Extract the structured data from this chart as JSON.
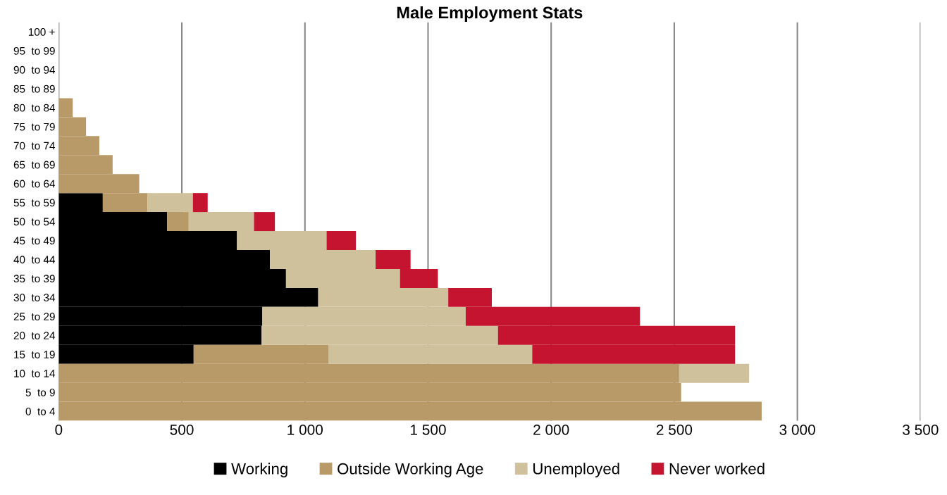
{
  "chart_data": {
    "type": "bar",
    "orientation": "horizontal",
    "stacked": true,
    "title": "Male Employment Stats",
    "categories": [
      "100 +",
      "95  to 99",
      "90  to 94",
      "85  to 89",
      "80  to 84",
      "75  to 79",
      "70  to 74",
      "65  to 69",
      "60  to 64",
      "55  to 59",
      "50  to 54",
      "45  to 49",
      "40  to 44",
      "35  to 39",
      "30  to 34",
      "25  to 29",
      "20  to 24",
      "15  to 19",
      "10  to 14",
      "5  to 9",
      "0  to 4"
    ],
    "series": [
      {
        "name": "Working",
        "color": "#000000",
        "values": [
          0,
          0,
          0,
          0,
          0,
          0,
          0,
          0,
          0,
          179,
          440,
          724,
          858,
          923,
          1054,
          827,
          824,
          548,
          0,
          0,
          0
        ]
      },
      {
        "name": "Outside Working Age",
        "color": "#b89968",
        "values": [
          0,
          0,
          0,
          0,
          57,
          111,
          165,
          219,
          327,
          182,
          88,
          0,
          0,
          0,
          0,
          0,
          0,
          549,
          2520,
          2528,
          2855
        ]
      },
      {
        "name": "Unemployed",
        "color": "#cfc19b",
        "values": [
          0,
          0,
          0,
          0,
          0,
          0,
          0,
          0,
          0,
          184,
          265,
          364,
          429,
          463,
          528,
          826,
          960,
          826,
          284,
          0,
          0
        ]
      },
      {
        "name": "Never worked",
        "color": "#c41430",
        "values": [
          0,
          0,
          0,
          0,
          0,
          0,
          0,
          0,
          0,
          60,
          85,
          119,
          142,
          154,
          177,
          708,
          963,
          824,
          0,
          0,
          0
        ]
      }
    ],
    "xlim": [
      0,
      3500
    ],
    "xticks": [
      0,
      500,
      {
        "value": 1000,
        "label": "1 000"
      },
      {
        "value": 1500,
        "label": "1 500"
      },
      {
        "value": 2000,
        "label": "2 000"
      },
      {
        "value": 2500,
        "label": "2 500"
      },
      {
        "value": 3000,
        "label": "3 000"
      },
      {
        "value": 3500,
        "label": "3 500"
      }
    ],
    "grid": "x",
    "legend": "bottom"
  }
}
